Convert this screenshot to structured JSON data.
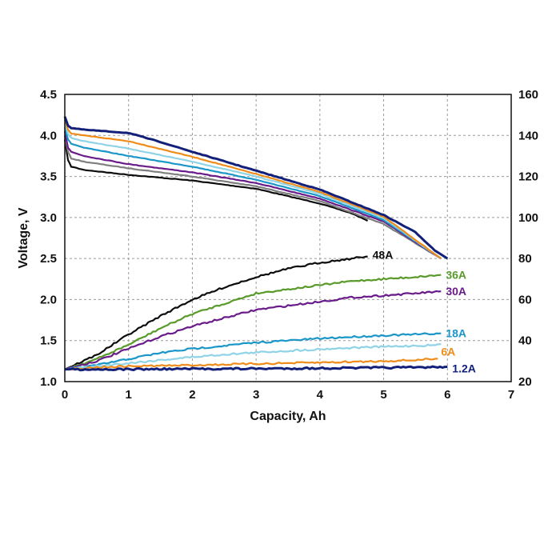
{
  "chart_data": {
    "type": "line",
    "xlabel": "Capacity,  Ah",
    "ylabel": "Voltage, V",
    "xlim": [
      0,
      7
    ],
    "ylim": [
      1.0,
      4.5
    ],
    "y2lim": [
      20,
      160
    ],
    "x_ticks": [
      "0",
      "1",
      "2",
      "3",
      "4",
      "5",
      "6",
      "7"
    ],
    "y_ticks": [
      "1.0",
      "1.5",
      "2.0",
      "2.5",
      "3.0",
      "3.5",
      "4.0",
      "4.5"
    ],
    "y2_ticks": [
      "20",
      "40",
      "60",
      "80",
      "100",
      "120",
      "140",
      "160"
    ],
    "grid": true,
    "voltage_curves": [
      {
        "color": "#0d0d0d",
        "axis": "left",
        "points": [
          [
            0,
            3.95
          ],
          [
            0.05,
            3.7
          ],
          [
            0.1,
            3.62
          ],
          [
            0.3,
            3.58
          ],
          [
            1,
            3.52
          ],
          [
            2,
            3.45
          ],
          [
            3,
            3.35
          ],
          [
            4,
            3.17
          ],
          [
            4.5,
            3.05
          ],
          [
            4.75,
            2.96
          ]
        ]
      },
      {
        "color": "#7f7f7f",
        "axis": "left",
        "points": [
          [
            0,
            4.0
          ],
          [
            0.05,
            3.8
          ],
          [
            0.1,
            3.72
          ],
          [
            0.3,
            3.68
          ],
          [
            1,
            3.6
          ],
          [
            2,
            3.5
          ],
          [
            3,
            3.38
          ],
          [
            4,
            3.2
          ],
          [
            5,
            2.92
          ],
          [
            5.9,
            2.5
          ]
        ]
      },
      {
        "color": "#6a1b8a",
        "axis": "left",
        "points": [
          [
            0,
            4.05
          ],
          [
            0.05,
            3.85
          ],
          [
            0.1,
            3.8
          ],
          [
            0.3,
            3.75
          ],
          [
            1,
            3.65
          ],
          [
            2,
            3.55
          ],
          [
            3,
            3.42
          ],
          [
            4,
            3.23
          ],
          [
            5,
            2.95
          ],
          [
            5.9,
            2.5
          ]
        ]
      },
      {
        "color": "#1a96c8",
        "axis": "left",
        "points": [
          [
            0,
            4.1
          ],
          [
            0.05,
            3.95
          ],
          [
            0.1,
            3.9
          ],
          [
            0.3,
            3.85
          ],
          [
            1,
            3.75
          ],
          [
            2,
            3.62
          ],
          [
            3,
            3.46
          ],
          [
            4,
            3.26
          ],
          [
            5,
            2.97
          ],
          [
            5.9,
            2.5
          ]
        ]
      },
      {
        "color": "#8fd3e6",
        "axis": "left",
        "points": [
          [
            0,
            4.15
          ],
          [
            0.05,
            4.02
          ],
          [
            0.1,
            3.97
          ],
          [
            0.3,
            3.93
          ],
          [
            1,
            3.84
          ],
          [
            2,
            3.68
          ],
          [
            3,
            3.5
          ],
          [
            4,
            3.29
          ],
          [
            5,
            2.99
          ],
          [
            5.9,
            2.5
          ]
        ]
      },
      {
        "color": "#f08c1a",
        "axis": "left",
        "points": [
          [
            0,
            4.2
          ],
          [
            0.05,
            4.07
          ],
          [
            0.1,
            4.02
          ],
          [
            0.3,
            4.0
          ],
          [
            1,
            3.93
          ],
          [
            2,
            3.74
          ],
          [
            3,
            3.53
          ],
          [
            4,
            3.31
          ],
          [
            5,
            3.01
          ],
          [
            5.9,
            2.5
          ]
        ]
      },
      {
        "color": "#13207a",
        "axis": "left",
        "points": [
          [
            0,
            4.23
          ],
          [
            0.05,
            4.12
          ],
          [
            0.1,
            4.09
          ],
          [
            0.3,
            4.07
          ],
          [
            1,
            4.03
          ],
          [
            1.5,
            3.92
          ],
          [
            2,
            3.8
          ],
          [
            3,
            3.57
          ],
          [
            4,
            3.34
          ],
          [
            5,
            3.03
          ],
          [
            5.5,
            2.82
          ],
          [
            5.8,
            2.6
          ],
          [
            6.0,
            2.5
          ]
        ]
      }
    ],
    "temperature_curves": [
      {
        "name": "48A",
        "color": "#0d0d0d",
        "axis": "right",
        "points": [
          [
            0,
            26
          ],
          [
            0.5,
            33
          ],
          [
            1,
            43
          ],
          [
            1.5,
            52
          ],
          [
            2,
            60
          ],
          [
            2.5,
            66
          ],
          [
            3,
            71
          ],
          [
            3.5,
            75
          ],
          [
            4,
            78
          ],
          [
            4.5,
            80
          ],
          [
            4.75,
            81
          ]
        ]
      },
      {
        "name": "36A",
        "color": "#5a9a2a",
        "axis": "right",
        "points": [
          [
            0,
            26
          ],
          [
            0.5,
            31
          ],
          [
            1,
            38
          ],
          [
            1.5,
            46
          ],
          [
            2,
            53
          ],
          [
            2.5,
            58
          ],
          [
            3,
            63
          ],
          [
            3.5,
            65
          ],
          [
            4,
            67
          ],
          [
            4.5,
            69
          ],
          [
            5,
            70
          ],
          [
            5.5,
            71
          ],
          [
            5.9,
            72
          ]
        ]
      },
      {
        "name": "30A",
        "color": "#6a1b8a",
        "axis": "right",
        "points": [
          [
            0,
            26
          ],
          [
            0.5,
            30
          ],
          [
            1,
            36
          ],
          [
            1.5,
            42
          ],
          [
            2,
            47
          ],
          [
            2.5,
            51
          ],
          [
            3,
            55
          ],
          [
            3.5,
            57
          ],
          [
            4,
            59
          ],
          [
            4.5,
            61
          ],
          [
            5,
            62
          ],
          [
            5.5,
            63
          ],
          [
            5.9,
            64
          ]
        ]
      },
      {
        "name": "18A",
        "color": "#1a96c8",
        "axis": "right",
        "points": [
          [
            0,
            26
          ],
          [
            0.5,
            28
          ],
          [
            1,
            31
          ],
          [
            1.5,
            34
          ],
          [
            2,
            36
          ],
          [
            2.5,
            37.5
          ],
          [
            3,
            39
          ],
          [
            3.5,
            40
          ],
          [
            4,
            41
          ],
          [
            4.5,
            41.8
          ],
          [
            5,
            42.5
          ],
          [
            5.5,
            43
          ],
          [
            5.9,
            43.5
          ]
        ]
      },
      {
        "name": "",
        "color": "#8fd3e6",
        "axis": "right",
        "points": [
          [
            0,
            26
          ],
          [
            0.5,
            27.5
          ],
          [
            1,
            29
          ],
          [
            1.5,
            30.5
          ],
          [
            2,
            32
          ],
          [
            2.5,
            33.2
          ],
          [
            3,
            34.2
          ],
          [
            3.5,
            35
          ],
          [
            4,
            35.8
          ],
          [
            4.5,
            36.5
          ],
          [
            5,
            37
          ],
          [
            5.5,
            37.5
          ],
          [
            5.85,
            37.8
          ],
          [
            5.9,
            38.5
          ]
        ]
      },
      {
        "name": "6A",
        "color": "#f08c1a",
        "axis": "right",
        "points": [
          [
            0,
            26
          ],
          [
            0.5,
            27
          ],
          [
            1,
            27.5
          ],
          [
            2,
            28
          ],
          [
            3,
            28.7
          ],
          [
            4,
            29.3
          ],
          [
            5,
            30
          ],
          [
            5.5,
            30.5
          ],
          [
            5.85,
            31.2
          ]
        ]
      },
      {
        "name": "1.2A",
        "color": "#13207a",
        "axis": "right",
        "points": [
          [
            0,
            26
          ],
          [
            1,
            26
          ],
          [
            2,
            26.2
          ],
          [
            3,
            26.3
          ],
          [
            4,
            26.5
          ],
          [
            5,
            26.8
          ],
          [
            5.5,
            26.9
          ],
          [
            6.0,
            27.2
          ]
        ]
      }
    ]
  }
}
